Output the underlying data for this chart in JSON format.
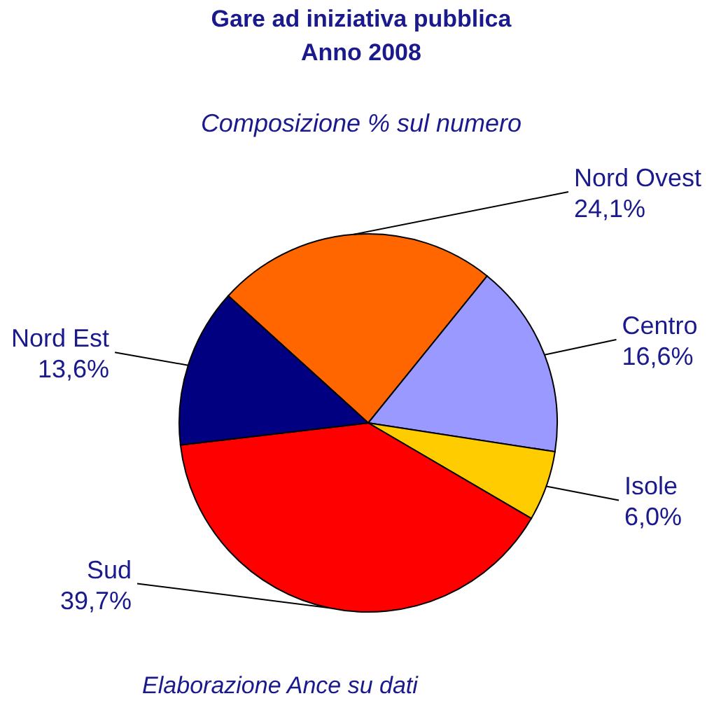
{
  "chart_data": {
    "type": "pie",
    "title": "Gare ad iniziativa pubblica\nAnno 2008",
    "subtitle": "Composizione % sul numero",
    "categories": [
      "Nord Ovest",
      "Centro",
      "Isole",
      "Sud",
      "Nord Est"
    ],
    "values": [
      24.1,
      16.6,
      6.0,
      39.7,
      13.6
    ],
    "value_labels": [
      "24,1%",
      "16,6%",
      "6,0%",
      "39,7%",
      "13,6%"
    ],
    "colors": [
      "#ff6600",
      "#9999ff",
      "#ffcc00",
      "#ff0000",
      "#000080"
    ],
    "legend": false,
    "annotations": [
      "Elaborazione Ance su dati"
    ]
  }
}
